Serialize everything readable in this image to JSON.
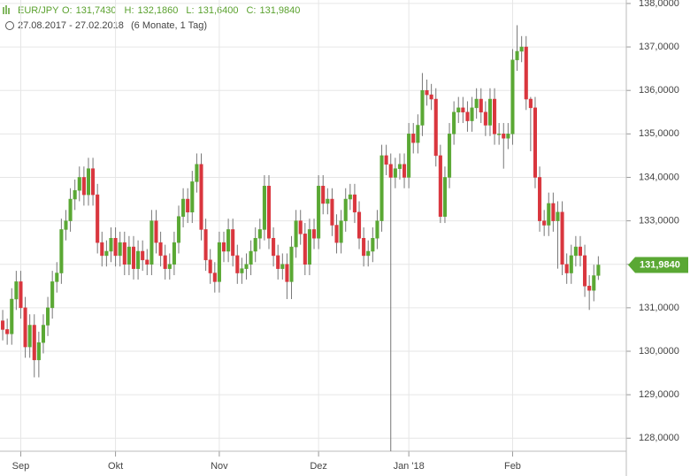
{
  "chart_data": {
    "type": "candlestick",
    "header": {
      "symbol": "EUR/JPY",
      "ohlc_labels": [
        {
          "key": "O:",
          "label": "131,7430"
        },
        {
          "key": "H:",
          "label": "132,1860"
        },
        {
          "key": "L:",
          "label": "131,6400"
        },
        {
          "key": "C:",
          "label": "131,9840"
        }
      ],
      "range": "27.08.2017 - 27.02.2018",
      "period": "(6 Monate, 1 Tag)"
    },
    "last_label": "131,9840",
    "up_color": "#5aa834",
    "down_color": "#d9363e",
    "wick_color": "#777777",
    "grid": true,
    "xlim": [
      -0.6,
      138.2
    ],
    "xticks": [
      {
        "value": 4,
        "label": "Sep"
      },
      {
        "value": 25,
        "label": "Okt"
      },
      {
        "value": 48,
        "label": "Nov"
      },
      {
        "value": 70,
        "label": "Dez"
      },
      {
        "value": 90,
        "label": "Jan '18"
      },
      {
        "value": 113,
        "label": "Feb"
      }
    ],
    "ylim": [
      127.7,
      138.08
    ],
    "yticks": [
      {
        "value": 128,
        "label": "128,0000"
      },
      {
        "value": 129,
        "label": "129,0000"
      },
      {
        "value": 130,
        "label": "130,0000"
      },
      {
        "value": 131,
        "label": "131,0000"
      },
      {
        "value": 132,
        "label": "132,0000"
      },
      {
        "value": 133,
        "label": "133,0000"
      },
      {
        "value": 134,
        "label": "134,0000"
      },
      {
        "value": 135,
        "label": "135,0000"
      },
      {
        "value": 136,
        "label": "136,0000"
      },
      {
        "value": 137,
        "label": "137,0000"
      },
      {
        "value": 138,
        "label": "138,0000"
      }
    ],
    "open": [
      130.7,
      130.5,
      130.4,
      131.2,
      131.6,
      131.0,
      130.1,
      130.6,
      129.8,
      130.2,
      130.6,
      131.0,
      131.6,
      131.8,
      132.8,
      133.0,
      133.5,
      133.7,
      134.0,
      133.6,
      134.2,
      133.6,
      132.5,
      132.2,
      132.3,
      132.6,
      132.2,
      132.5,
      132.0,
      132.4,
      131.9,
      132.3,
      132.1,
      132.0,
      133.0,
      132.5,
      132.2,
      131.9,
      132.0,
      132.5,
      133.1,
      133.5,
      133.2,
      133.9,
      134.3,
      132.8,
      132.1,
      131.8,
      131.6,
      132.5,
      132.3,
      132.8,
      132.2,
      131.8,
      131.9,
      132.0,
      132.3,
      132.6,
      132.8,
      133.8,
      132.6,
      132.2,
      131.9,
      132.0,
      131.6,
      132.4,
      133.0,
      132.7,
      132.0,
      132.8,
      132.6,
      133.8,
      133.4,
      133.5,
      132.9,
      132.5,
      133.0,
      133.5,
      133.6,
      133.2,
      132.6,
      132.2,
      132.3,
      132.6,
      133.0,
      134.5,
      134.3,
      134.0,
      134.2,
      134.3,
      134.0,
      135.0,
      134.8,
      135.2,
      136.0,
      135.9,
      135.8,
      134.5,
      133.1,
      134.0,
      135.0,
      135.5,
      135.6,
      135.5,
      135.3,
      135.6,
      135.8,
      135.5,
      135.2,
      135.8,
      135.0,
      135.0,
      134.9,
      135.0,
      136.7,
      136.9,
      137.0,
      135.8,
      135.6,
      134.0,
      133.0,
      132.9,
      133.4,
      133.0,
      133.2,
      132.0,
      131.8,
      132.2,
      132.4,
      132.2,
      131.5,
      131.4,
      131.743
    ],
    "high": [
      130.95,
      130.75,
      131.45,
      131.85,
      131.85,
      131.25,
      130.85,
      130.85,
      130.45,
      130.85,
      131.25,
      131.85,
      132.05,
      133.05,
      133.25,
      133.75,
      133.95,
      134.25,
      134.25,
      134.45,
      134.45,
      133.85,
      132.75,
      132.55,
      132.85,
      132.85,
      132.75,
      132.75,
      132.65,
      132.65,
      132.55,
      132.55,
      132.35,
      133.25,
      133.25,
      132.75,
      132.45,
      132.25,
      132.75,
      133.35,
      133.75,
      133.75,
      134.15,
      134.55,
      134.55,
      133.05,
      132.35,
      132.05,
      132.75,
      132.75,
      133.05,
      133.05,
      132.45,
      132.15,
      132.25,
      132.55,
      132.85,
      133.05,
      134.05,
      134.05,
      132.85,
      132.45,
      132.25,
      132.25,
      132.65,
      133.25,
      133.25,
      132.95,
      133.05,
      133.05,
      134.05,
      134.05,
      133.75,
      133.75,
      133.15,
      133.25,
      133.75,
      133.85,
      133.85,
      133.45,
      132.85,
      132.55,
      132.85,
      133.25,
      134.75,
      134.75,
      134.55,
      134.45,
      134.55,
      134.55,
      135.25,
      135.25,
      135.45,
      136.4,
      136.25,
      136.15,
      136.05,
      134.75,
      134.25,
      135.25,
      135.75,
      135.85,
      135.85,
      135.75,
      135.85,
      136.05,
      136.05,
      135.75,
      136.05,
      136.05,
      135.25,
      135.25,
      135.25,
      136.95,
      137.5,
      137.25,
      137.25,
      135.85,
      135.85,
      134.25,
      133.25,
      133.65,
      133.65,
      133.45,
      133.45,
      132.25,
      132.45,
      132.65,
      132.65,
      132.45,
      131.75,
      131.99,
      132.186
    ],
    "low": [
      130.25,
      130.15,
      130.15,
      130.95,
      130.75,
      129.85,
      129.85,
      129.4,
      129.4,
      129.95,
      130.35,
      130.75,
      131.35,
      131.55,
      132.55,
      132.75,
      133.25,
      133.45,
      133.35,
      133.35,
      133.35,
      132.25,
      131.95,
      131.95,
      132.05,
      131.95,
      131.95,
      131.75,
      131.75,
      131.65,
      131.65,
      131.85,
      131.75,
      131.75,
      132.25,
      131.95,
      131.65,
      131.65,
      131.75,
      132.25,
      132.85,
      132.95,
      132.95,
      133.65,
      132.55,
      131.85,
      131.55,
      131.35,
      131.35,
      132.05,
      132.05,
      131.95,
      131.55,
      131.55,
      131.65,
      131.75,
      132.05,
      132.35,
      132.55,
      132.35,
      131.95,
      131.65,
      131.65,
      131.2,
      131.2,
      132.15,
      132.45,
      131.75,
      131.75,
      132.35,
      132.35,
      133.15,
      133.15,
      132.65,
      132.25,
      132.25,
      132.75,
      133.25,
      132.95,
      132.35,
      131.95,
      131.95,
      132.05,
      132.35,
      132.75,
      134.05,
      127.7,
      133.75,
      133.95,
      133.75,
      133.75,
      134.55,
      134.55,
      134.95,
      135.65,
      135.55,
      134.25,
      132.95,
      132.95,
      133.75,
      134.75,
      135.25,
      135.25,
      135.05,
      135.05,
      135.35,
      135.25,
      134.95,
      134.95,
      134.75,
      134.75,
      134.2,
      134.65,
      134.75,
      136.45,
      136.65,
      135.55,
      134.6,
      133.75,
      132.75,
      132.65,
      132.65,
      132.75,
      131.9,
      131.75,
      131.55,
      131.55,
      131.95,
      131.95,
      131.25,
      130.95,
      131.15,
      131.64
    ],
    "close": [
      130.5,
      130.4,
      131.2,
      131.6,
      131.0,
      130.1,
      130.6,
      129.8,
      130.2,
      130.6,
      131.0,
      131.6,
      131.8,
      132.8,
      133.0,
      133.5,
      133.7,
      134.0,
      133.6,
      134.2,
      133.6,
      132.5,
      132.2,
      132.3,
      132.6,
      132.2,
      132.5,
      132.0,
      132.4,
      131.9,
      132.3,
      132.1,
      132.0,
      133.0,
      132.5,
      132.2,
      131.9,
      132.0,
      132.5,
      133.1,
      133.5,
      133.2,
      133.9,
      134.3,
      132.8,
      132.1,
      131.8,
      131.6,
      132.5,
      132.3,
      132.8,
      132.2,
      131.8,
      131.9,
      132.0,
      132.3,
      132.6,
      132.8,
      133.8,
      132.6,
      132.2,
      131.9,
      132.0,
      131.6,
      132.4,
      133.0,
      132.7,
      132.0,
      132.8,
      132.6,
      133.8,
      133.4,
      133.5,
      132.9,
      132.5,
      133.0,
      133.5,
      133.6,
      133.2,
      132.6,
      132.2,
      132.3,
      132.6,
      133.0,
      134.5,
      134.3,
      134.0,
      134.2,
      134.3,
      134.0,
      135.0,
      134.8,
      135.2,
      136.0,
      135.9,
      135.8,
      134.5,
      133.1,
      134.0,
      135.0,
      135.5,
      135.6,
      135.5,
      135.3,
      135.6,
      135.8,
      135.5,
      135.2,
      135.8,
      135.0,
      135.0,
      134.9,
      135.0,
      136.7,
      136.9,
      137.0,
      135.8,
      135.6,
      134.0,
      133.0,
      132.9,
      133.4,
      133.0,
      133.2,
      132.0,
      131.8,
      132.2,
      132.4,
      132.2,
      131.5,
      131.4,
      131.74,
      131.984
    ]
  }
}
